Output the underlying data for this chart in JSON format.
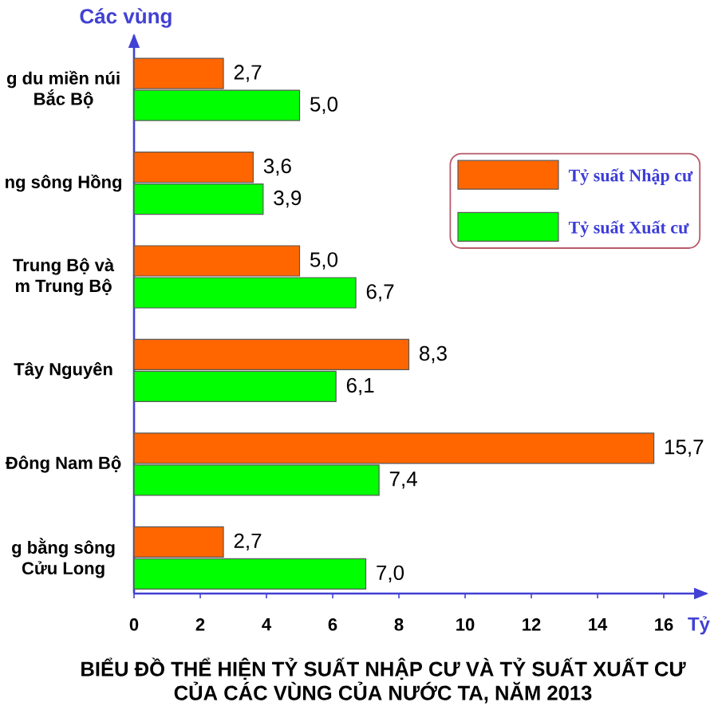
{
  "chart_data": {
    "type": "bar",
    "orientation": "horizontal",
    "title": "BIỂU ĐỒ THỂ HIỆN TỶ SUẤT NHẬP CƯ VÀ TỶ SUẤT XUẤT CƯ CỦA CÁC VÙNG CỦA NƯỚC TA, NĂM 2013",
    "xlabel": "Tỷ",
    "ylabel": "Các vùng",
    "categories": [
      "g du miền núi Bắc Bộ",
      "ng sông Hồng",
      "Trung Bộ và m Trung Bộ",
      "Tây Nguyên",
      "Đông Nam Bộ",
      "g bằng sông Cửu Long"
    ],
    "series": [
      {
        "name": "Tỷ suất Nhập cư",
        "color": "#ff6600",
        "values": [
          2.7,
          3.6,
          5.0,
          8.3,
          15.7,
          2.7
        ],
        "value_labels": [
          "2,7",
          "3,6",
          "5,0",
          "8,3",
          "15,7",
          "2,7"
        ]
      },
      {
        "name": "Tỷ suất Xuất cư",
        "color": "#00ff00",
        "values": [
          5.0,
          3.9,
          6.7,
          6.1,
          7.4,
          7.0
        ],
        "value_labels": [
          "5,0",
          "3,9",
          "6,7",
          "6,1",
          "7,4",
          "7,0"
        ]
      }
    ],
    "xlim": [
      0,
      17.3
    ],
    "xticks": [
      0,
      2,
      4,
      6,
      8,
      10,
      12,
      14,
      16
    ],
    "legend": "top right"
  }
}
